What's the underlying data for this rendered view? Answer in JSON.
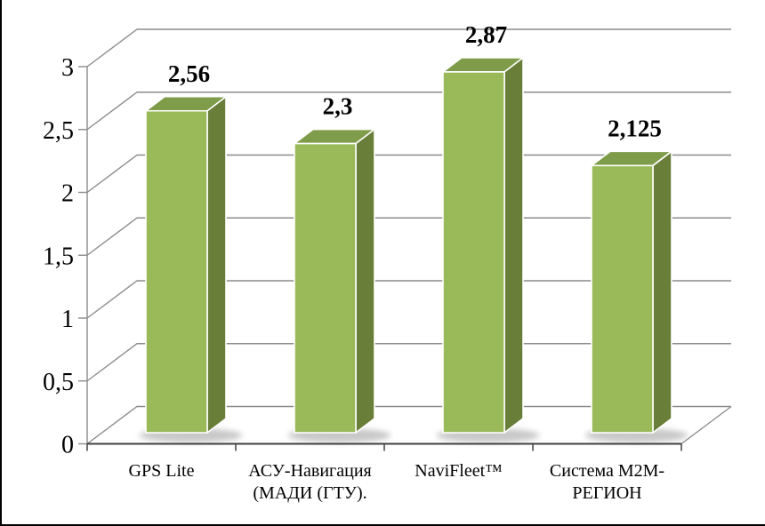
{
  "page": {
    "background": "#FFFFFF",
    "edge_border_color": "#000000"
  },
  "chart_data": {
    "type": "bar",
    "projection": "3d",
    "categories": [
      "GPS Lite",
      "АСУ-Навигация (МАДИ (ГТУ).",
      "NaviFleet™",
      "Система M2M-РЕГИОН"
    ],
    "category_label_lines": [
      [
        "GPS Lite"
      ],
      [
        "АСУ-Навигация",
        "(МАДИ (ГТУ)."
      ],
      [
        "NaviFleet™"
      ],
      [
        "Система M2M-",
        "РЕГИОН"
      ]
    ],
    "values": [
      2.56,
      2.3,
      2.87,
      2.125
    ],
    "value_labels": [
      "2,56",
      "2,3",
      "2,87",
      "2,125"
    ],
    "y_ticks": [
      "0",
      "0,5",
      "1",
      "1,5",
      "2",
      "2,5",
      "3"
    ],
    "ylim": [
      0,
      3
    ],
    "y_step": 0.5,
    "grid": true,
    "legend": "none",
    "decimal_separator": ",",
    "colors": {
      "bar_front": "#9ABA59",
      "bar_top": "#7E9C49",
      "bar_side": "#697E38",
      "edge_highlight": "#FFFFFF",
      "gridline": "#8C8C8C",
      "axis_line": "#404040",
      "shadow": "#9B9B9B",
      "text": "#000000"
    }
  }
}
